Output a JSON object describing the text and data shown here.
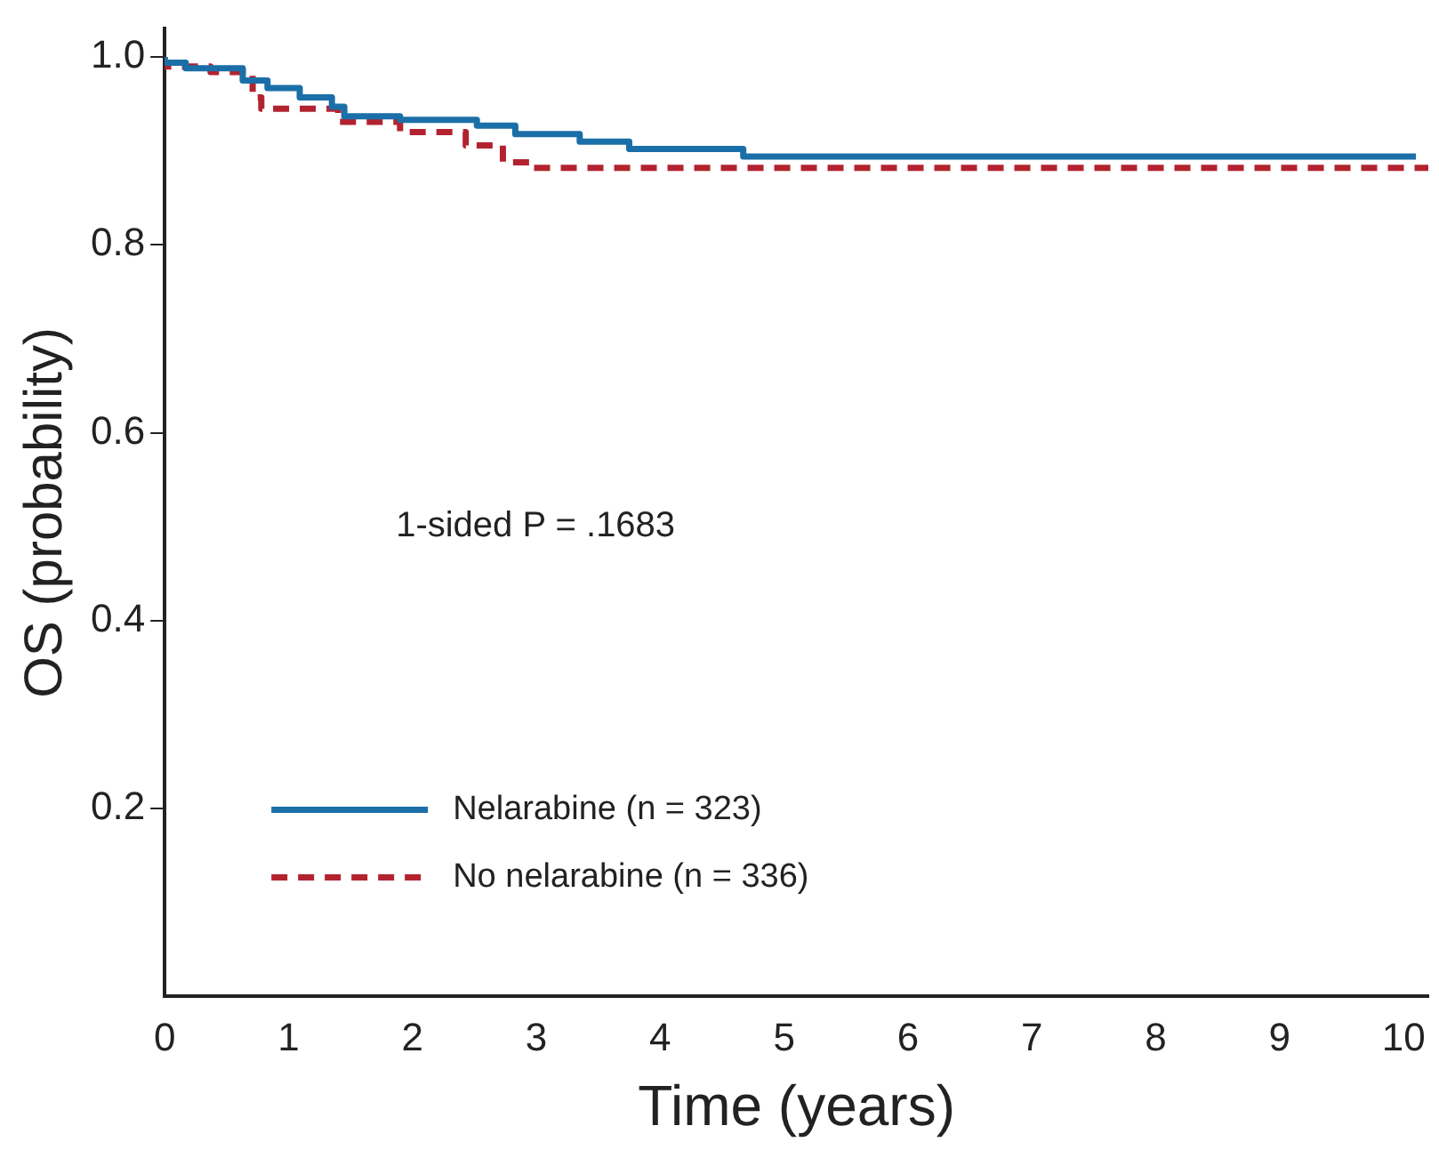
{
  "chart_data": {
    "type": "step",
    "xlabel": "Time (years)",
    "ylabel": "OS (probability)",
    "xlim": [
      0,
      10.2
    ],
    "ylim": [
      0,
      1.03
    ],
    "xticks": [
      0,
      1,
      2,
      3,
      4,
      5,
      6,
      7,
      8,
      9,
      10
    ],
    "yticks": [
      0.2,
      0.4,
      0.6,
      0.8,
      {
        "value": 1,
        "label": "1.0"
      }
    ],
    "grid": false,
    "legend": "bottom left",
    "annotations": [
      "1-sided P = .1683"
    ],
    "series": [
      {
        "name": "Nelarabine (n = 323)",
        "color": "#1b6fa8",
        "line_style": "solid",
        "x": [
          0,
          0.17,
          0.63,
          0.83,
          1.09,
          1.35,
          1.45,
          1.9,
          2.52,
          2.83,
          3.35,
          3.75,
          4.67,
          5.62,
          10.1
        ],
        "values": [
          1.0,
          0.994,
          0.988,
          0.975,
          0.967,
          0.957,
          0.947,
          0.937,
          0.933,
          0.927,
          0.918,
          0.91,
          0.902,
          0.894,
          0.894
        ]
      },
      {
        "name": "No nelarabine (n = 336)",
        "color": "#b2232f",
        "line_style": "dashed",
        "x": [
          0,
          0.37,
          0.71,
          0.78,
          1.4,
          1.9,
          2.43,
          2.73,
          2.98,
          4.52,
          10.2
        ],
        "values": [
          1.0,
          0.99,
          0.984,
          0.957,
          0.945,
          0.931,
          0.92,
          0.906,
          0.888,
          0.882,
          0.882
        ]
      }
    ]
  }
}
